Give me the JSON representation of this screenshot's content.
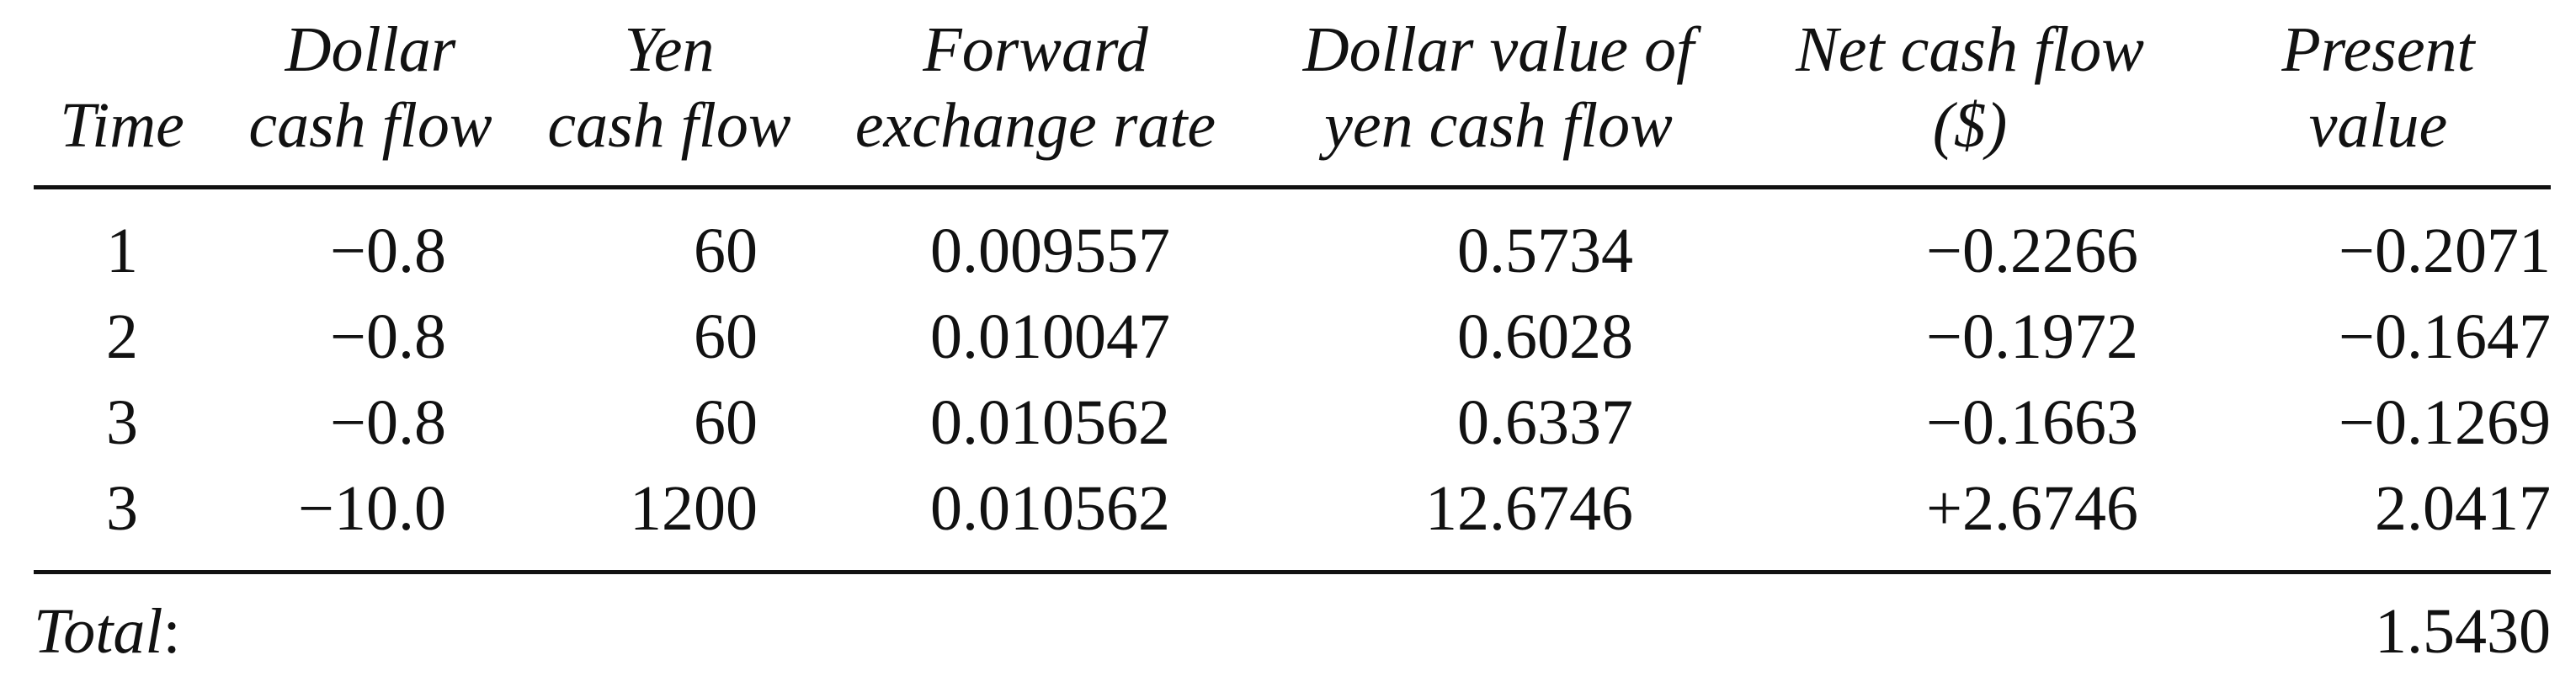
{
  "table": {
    "headers": [
      [
        "Time"
      ],
      [
        "Dollar",
        "cash flow"
      ],
      [
        "Yen",
        "cash flow"
      ],
      [
        "Forward",
        "exchange rate"
      ],
      [
        "Dollar value of",
        "yen cash flow"
      ],
      [
        "Net cash flow",
        "($)"
      ],
      [
        "Present",
        "value"
      ]
    ],
    "rows": [
      [
        "1",
        "−0.8",
        "60",
        "0.009557",
        "0.5734",
        "−0.2266",
        "−0.2071"
      ],
      [
        "2",
        "−0.8",
        "60",
        "0.010047",
        "0.6028",
        "−0.1972",
        "−0.1647"
      ],
      [
        "3",
        "−0.8",
        "60",
        "0.010562",
        "0.6337",
        "−0.1663",
        "−0.1269"
      ],
      [
        "3",
        "−10.0",
        "1200",
        "0.010562",
        "12.6746",
        "+2.6746",
        "2.0417"
      ]
    ],
    "total": {
      "label": "Total",
      "colon": ":",
      "value": "1.5430"
    }
  }
}
